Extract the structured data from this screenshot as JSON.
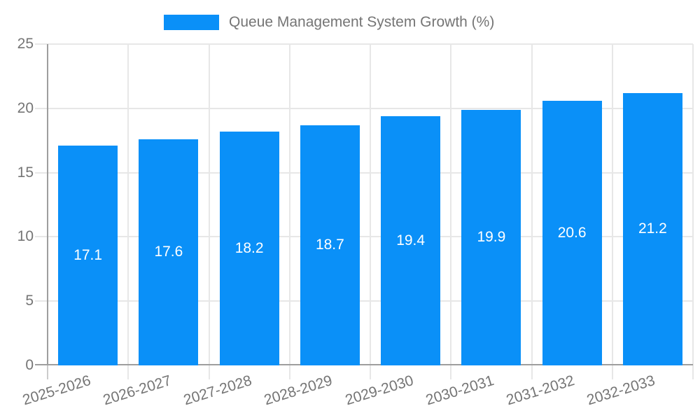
{
  "chart_data": {
    "type": "bar",
    "title": "Queue Management System Growth (%)",
    "categories": [
      "2025-2026",
      "2026-2027",
      "2027-2028",
      "2028-2029",
      "2029-2030",
      "2030-2031",
      "2031-2032",
      "2032-2033"
    ],
    "values": [
      17.1,
      17.6,
      18.2,
      18.7,
      19.4,
      19.9,
      20.6,
      21.2
    ],
    "value_labels": [
      "17.1",
      "17.6",
      "18.2",
      "18.7",
      "19.4",
      "19.9",
      "20.6",
      "21.2"
    ],
    "xlabel": "",
    "ylabel": "",
    "ylim": [
      0,
      25
    ],
    "yticks": [
      0,
      5,
      10,
      15,
      20,
      25
    ],
    "ytick_labels": [
      "0",
      "5",
      "10",
      "15",
      "20",
      "25"
    ],
    "grid": true,
    "legend": {
      "position": "top",
      "label": "Queue Management System Growth (%)"
    },
    "colors": {
      "bar": "#0a90f8",
      "grid": "#e7e7e7",
      "axis": "#9e9e9e",
      "tick": "#cccccc",
      "text": "#757575",
      "value_label": "#ffffff",
      "background": "#ffffff"
    }
  }
}
